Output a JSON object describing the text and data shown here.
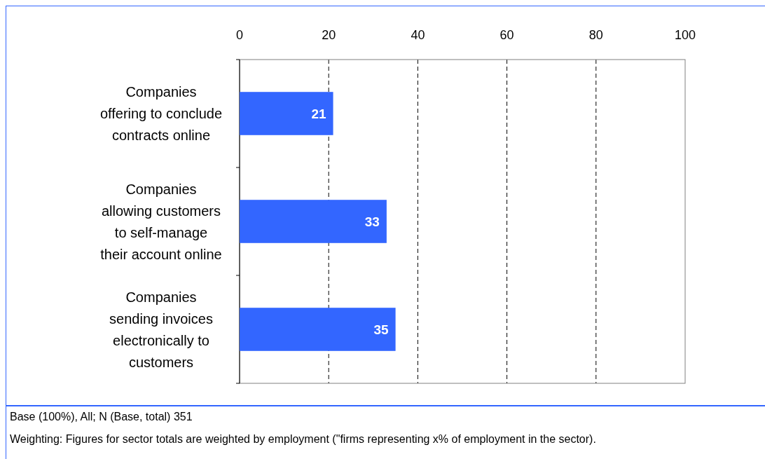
{
  "chart_data": {
    "type": "bar",
    "orientation": "horizontal",
    "categories": [
      "Companies\noffering to conclude\ncontracts online",
      "Companies\nallowing customers\nto self-manage\ntheir account online",
      "Companies\nsending invoices\nelectronically to\ncustomers"
    ],
    "values": [
      21,
      33,
      35
    ],
    "color": "#3366ff",
    "data_labels": true,
    "xlim": [
      0,
      100
    ],
    "xticks": [
      0,
      20,
      40,
      60,
      80,
      100
    ],
    "grid": "x",
    "annotations": [
      "Base (100%), All; N (Base, total)  351",
      "Weighting: Figures for sector totals are weighted by employment (\"firms representing x% of employment in the sector)."
    ]
  }
}
